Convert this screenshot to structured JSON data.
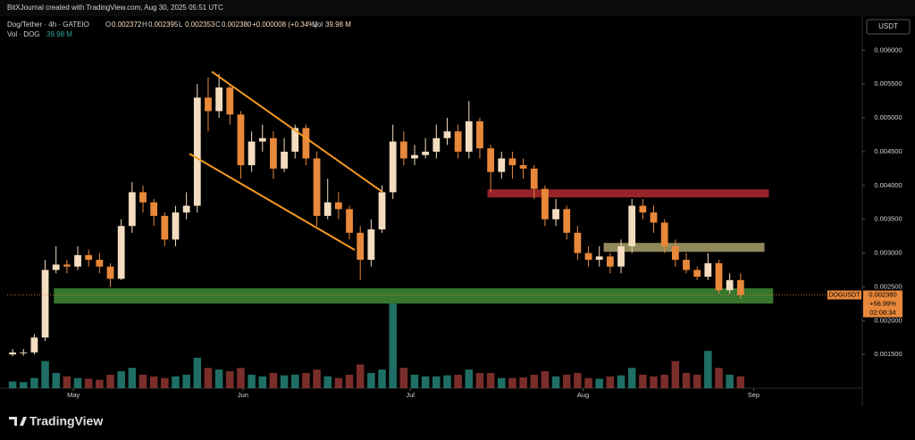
{
  "header": {
    "credit": "BitXJournal created with TradingView.com, Aug 30, 2025 05:51 UTC",
    "symbol": "Dog/Tether · 4h · GATEIO",
    "ohlc": [
      [
        "O",
        "0.002372"
      ],
      [
        "H",
        "0.002395"
      ],
      [
        "L",
        "0.002353"
      ],
      [
        "C",
        "0.002380"
      ]
    ],
    "change": "+0.000008 (+0.34%)",
    "vol_label": "Vol",
    "vol_value": "39.98 M",
    "vol_line": "Vol · DOG",
    "currency": "USDT"
  },
  "price_tag": {
    "symbol": "DOGUSDT",
    "price": "0.002380",
    "change": "+56.99%",
    "countdown": "02:08:34",
    "value": 0.00238
  },
  "footer": {
    "brand": "TradingView"
  },
  "chart_data": {
    "type": "candlestick",
    "xlim": [
      -0.5,
      78.2
    ],
    "xticks": [
      {
        "value": 5.6,
        "label": "May"
      },
      {
        "value": 21.2,
        "label": "Jun"
      },
      {
        "value": 36.6,
        "label": "Jul"
      },
      {
        "value": 52.5,
        "label": "Aug"
      },
      {
        "value": 68.2,
        "label": "Sep"
      }
    ],
    "ylim": [
      0.001,
      0.00648
    ],
    "yticks": [
      {
        "value": 0.0015,
        "label": "0.001500"
      },
      {
        "value": 0.002,
        "label": "0.002000"
      },
      {
        "value": 0.0025,
        "label": "0.002500"
      },
      {
        "value": 0.003,
        "label": "0.003000"
      },
      {
        "value": 0.0035,
        "label": "0.003500"
      },
      {
        "value": 0.004,
        "label": "0.004000"
      },
      {
        "value": 0.0045,
        "label": "0.004500"
      },
      {
        "value": 0.005,
        "label": "0.005000"
      },
      {
        "value": 0.0055,
        "label": "0.005500"
      },
      {
        "value": 0.006,
        "label": "0.006000"
      }
    ],
    "up_color": "#f3dcc0",
    "down_color": "#e8883a",
    "open": [
      0.0015,
      0.00153,
      0.00153,
      0.00175,
      0.00275,
      0.00283,
      0.0028,
      0.00297,
      0.0029,
      0.0028,
      0.00262,
      0.0034,
      0.0039,
      0.00375,
      0.00355,
      0.0032,
      0.0036,
      0.0037,
      0.0053,
      0.0051,
      0.00545,
      0.00505,
      0.0043,
      0.00465,
      0.0047,
      0.00425,
      0.0045,
      0.00485,
      0.0044,
      0.00355,
      0.00375,
      0.00365,
      0.0033,
      0.0029,
      0.00335,
      0.0039,
      0.00465,
      0.0044,
      0.00445,
      0.0045,
      0.0047,
      0.0048,
      0.0045,
      0.00495,
      0.00455,
      0.0042,
      0.0044,
      0.0043,
      0.00425,
      0.00395,
      0.0035,
      0.00365,
      0.0033,
      0.003,
      0.0029,
      0.00295,
      0.0028,
      0.0031,
      0.0037,
      0.0036,
      0.00345,
      0.0031,
      0.0029,
      0.00275,
      0.00265,
      0.00285,
      0.00245,
      0.0026
    ],
    "high": [
      0.00158,
      0.00158,
      0.0018,
      0.0029,
      0.0031,
      0.0029,
      0.0031,
      0.00305,
      0.003,
      0.00285,
      0.0035,
      0.00405,
      0.004,
      0.0038,
      0.0036,
      0.0037,
      0.0039,
      0.0055,
      0.0056,
      0.00565,
      0.0055,
      0.0051,
      0.0048,
      0.0049,
      0.0048,
      0.0047,
      0.0049,
      0.0049,
      0.0045,
      0.0041,
      0.0039,
      0.0037,
      0.0034,
      0.0035,
      0.004,
      0.0049,
      0.0048,
      0.0046,
      0.0047,
      0.0049,
      0.005,
      0.0049,
      0.00525,
      0.005,
      0.0046,
      0.0045,
      0.0045,
      0.0044,
      0.0043,
      0.004,
      0.0038,
      0.0037,
      0.0034,
      0.0031,
      0.0031,
      0.003,
      0.0032,
      0.0038,
      0.0038,
      0.0037,
      0.0035,
      0.0032,
      0.003,
      0.0028,
      0.003,
      0.0029,
      0.0027,
      0.0027
    ],
    "low": [
      0.00147,
      0.00148,
      0.0015,
      0.0017,
      0.0027,
      0.0027,
      0.00275,
      0.0028,
      0.0027,
      0.0025,
      0.0026,
      0.0033,
      0.0036,
      0.0034,
      0.0031,
      0.0031,
      0.0035,
      0.0036,
      0.0048,
      0.005,
      0.0049,
      0.0041,
      0.0042,
      0.0045,
      0.0041,
      0.0042,
      0.0044,
      0.0043,
      0.0034,
      0.0035,
      0.0035,
      0.0032,
      0.0026,
      0.0028,
      0.0033,
      0.0038,
      0.0043,
      0.0043,
      0.0044,
      0.0044,
      0.0046,
      0.0044,
      0.0044,
      0.0044,
      0.0039,
      0.0041,
      0.0041,
      0.0041,
      0.0038,
      0.0034,
      0.0034,
      0.0032,
      0.0029,
      0.0028,
      0.0028,
      0.0027,
      0.0027,
      0.003,
      0.0035,
      0.0033,
      0.003,
      0.0028,
      0.0027,
      0.0026,
      0.0026,
      0.0024,
      0.0024,
      0.00232
    ],
    "close": [
      0.00153,
      0.00153,
      0.00175,
      0.00275,
      0.00283,
      0.0028,
      0.00297,
      0.0029,
      0.0028,
      0.00262,
      0.0034,
      0.0039,
      0.00375,
      0.00355,
      0.0032,
      0.0036,
      0.0037,
      0.0053,
      0.0051,
      0.00545,
      0.00505,
      0.0043,
      0.00465,
      0.0047,
      0.00425,
      0.0045,
      0.00485,
      0.0044,
      0.00355,
      0.00375,
      0.00365,
      0.0033,
      0.0029,
      0.00335,
      0.0039,
      0.00465,
      0.0044,
      0.00445,
      0.0045,
      0.0047,
      0.0048,
      0.0045,
      0.00495,
      0.00455,
      0.0042,
      0.0044,
      0.0043,
      0.00425,
      0.00395,
      0.0035,
      0.00365,
      0.0033,
      0.003,
      0.0029,
      0.00295,
      0.0028,
      0.0031,
      0.0037,
      0.0036,
      0.00345,
      0.0031,
      0.0029,
      0.00275,
      0.00265,
      0.00285,
      0.00245,
      0.0026,
      0.00238
    ],
    "volume": [
      20,
      18,
      30,
      80,
      45,
      35,
      30,
      28,
      25,
      40,
      50,
      60,
      40,
      35,
      30,
      35,
      40,
      90,
      60,
      55,
      50,
      60,
      40,
      35,
      45,
      38,
      40,
      45,
      55,
      35,
      30,
      40,
      70,
      45,
      55,
      250,
      60,
      40,
      35,
      35,
      38,
      40,
      55,
      45,
      45,
      30,
      30,
      32,
      40,
      50,
      35,
      40,
      45,
      30,
      28,
      35,
      38,
      60,
      40,
      35,
      40,
      80,
      45,
      40,
      110,
      60,
      40,
      35
    ],
    "volume_up_color": "#1f6f66",
    "volume_down_color": "#7a2e2a",
    "trendlines": [
      {
        "x": [
          18.34,
          34.05
        ],
        "y": [
          0.005683,
          0.003902
        ],
        "color": "#f59a23"
      },
      {
        "x": [
          16.28,
          31.5
        ],
        "y": [
          0.00447,
          0.003045
        ],
        "color": "#f59a23"
      }
    ],
    "zones": [
      {
        "x": [
          43.7,
          69.6
        ],
        "y": [
          0.003823,
          0.003942
        ],
        "color": "#b02a30"
      },
      {
        "x": [
          54.4,
          69.2
        ],
        "y": [
          0.003018,
          0.00315
        ],
        "color": "#a9a06a"
      },
      {
        "x": [
          3.8,
          70.0
        ],
        "y": [
          0.002253,
          0.002478
        ],
        "color": "#3f8b35"
      }
    ]
  }
}
